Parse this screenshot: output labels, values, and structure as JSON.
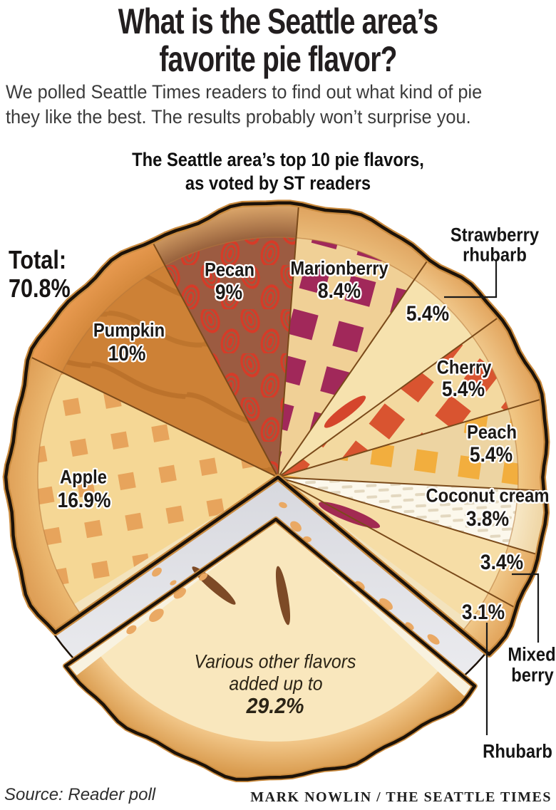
{
  "header": {
    "title_line1": "What is the Seattle area’s",
    "title_line2": "favorite pie flavor?",
    "subtitle_line1": "We polled Seattle Times readers to find out what kind of pie",
    "subtitle_line2": "they like the best. The results probably won’t surprise you."
  },
  "chart_data": {
    "type": "pie",
    "title_line1": "The Seattle area’s top 10 pie flavors,",
    "title_line2": "as voted by ST readers",
    "legend_position": "labels-on-slices",
    "unit": "%",
    "start_bearing_deg": 235.1,
    "total": {
      "label": "Total:",
      "value": "70.8%"
    },
    "slices": [
      {
        "name": "Apple",
        "display": "16.9%",
        "value": 16.9,
        "pattern": "lattice",
        "color": "#e7a45c",
        "accent": "#f5d795",
        "crust_inner": "#eebd75",
        "crust_outer": "#dfa058"
      },
      {
        "name": "Pumpkin",
        "display": "10%",
        "value": 10,
        "pattern": "pumpkin",
        "color": "#cd8136",
        "accent": "#a25d1c",
        "crust_inner": "#d08538",
        "crust_outer": "#e89a50"
      },
      {
        "name": "Pecan",
        "display": "9%",
        "value": 9,
        "pattern": "pecan",
        "color": "#9c5b41",
        "accent": "#d63b28",
        "crust_inner": "#8a5434",
        "crust_outer": "#d8a368"
      },
      {
        "name": "Marionberry",
        "display": "8.4%",
        "value": 8.4,
        "pattern": "lattice",
        "color": "#a1285a",
        "accent": "#f0d096",
        "crust_inner": "#ecc07e",
        "crust_outer": "#dfa35f"
      },
      {
        "name": "Strawberry rhubarb",
        "name_lines": [
          "Strawberry",
          "rhubarb"
        ],
        "display": "5.4%",
        "value": 5.4,
        "pattern": "plain",
        "color": "#f6e2ae",
        "accent": "#d5452c",
        "crust_inner": "#f2cd92",
        "crust_outer": "#e2a55e"
      },
      {
        "name": "Cherry",
        "display": "5.4%",
        "value": 5.4,
        "pattern": "lattice",
        "color": "#d95430",
        "accent": "#f3d9a0",
        "crust_inner": "#f2cd92",
        "crust_outer": "#e2a55e"
      },
      {
        "name": "Peach",
        "display": "5.4%",
        "value": 5.4,
        "pattern": "lattice",
        "color": "#f2ae3e",
        "accent": "#edd4a2",
        "crust_inner": "#f4cf8e",
        "crust_outer": "#e5a85f"
      },
      {
        "name": "Coconut cream",
        "display": "3.8%",
        "value": 3.8,
        "pattern": "coconut",
        "color": "#fcf8ec",
        "accent": "#e3d8c0",
        "crust_inner": "#f9ecce",
        "crust_outer": "#eed3a0"
      },
      {
        "name": "Mixed berry",
        "name_lines": [
          "Mixed",
          "berry"
        ],
        "display": "3.4%",
        "value": 3.4,
        "pattern": "plain",
        "color": "#f6dda6",
        "accent": "#a22a52",
        "crust_inner": "#f3cf92",
        "crust_outer": "#e3a75f"
      },
      {
        "name": "Rhubarb",
        "display": "3.1%",
        "value": 3.1,
        "pattern": "plain",
        "color": "#f6dda6",
        "accent": "#e9b06a",
        "crust_inner": "#f3cf92",
        "crust_outer": "#e3a75f"
      }
    ],
    "pulled_slice": {
      "name": "Various other flavors",
      "label_line1": "Various other flavors",
      "label_line2": "added up to",
      "display": "29.2%",
      "value": 29.2,
      "color": "#f9e7bd",
      "crust_inner": "#f3c98c",
      "crust_outer": "#d99b4e"
    },
    "colors": {
      "outline": "#1c1208",
      "rim_shade": "#c98a3e",
      "divider": "#7a4a1a",
      "plate": "#d7d8de",
      "plate_light": "#f2f2f5",
      "cut_face_main": "#f3e3bd",
      "cut_face_pulled": "#f8f2e0",
      "crumb": "#eaa964",
      "vent": "#7d4a26"
    }
  },
  "footer": {
    "source": "Source: Reader poll",
    "credit": "MARK NOWLIN / THE SEATTLE TIMES"
  }
}
